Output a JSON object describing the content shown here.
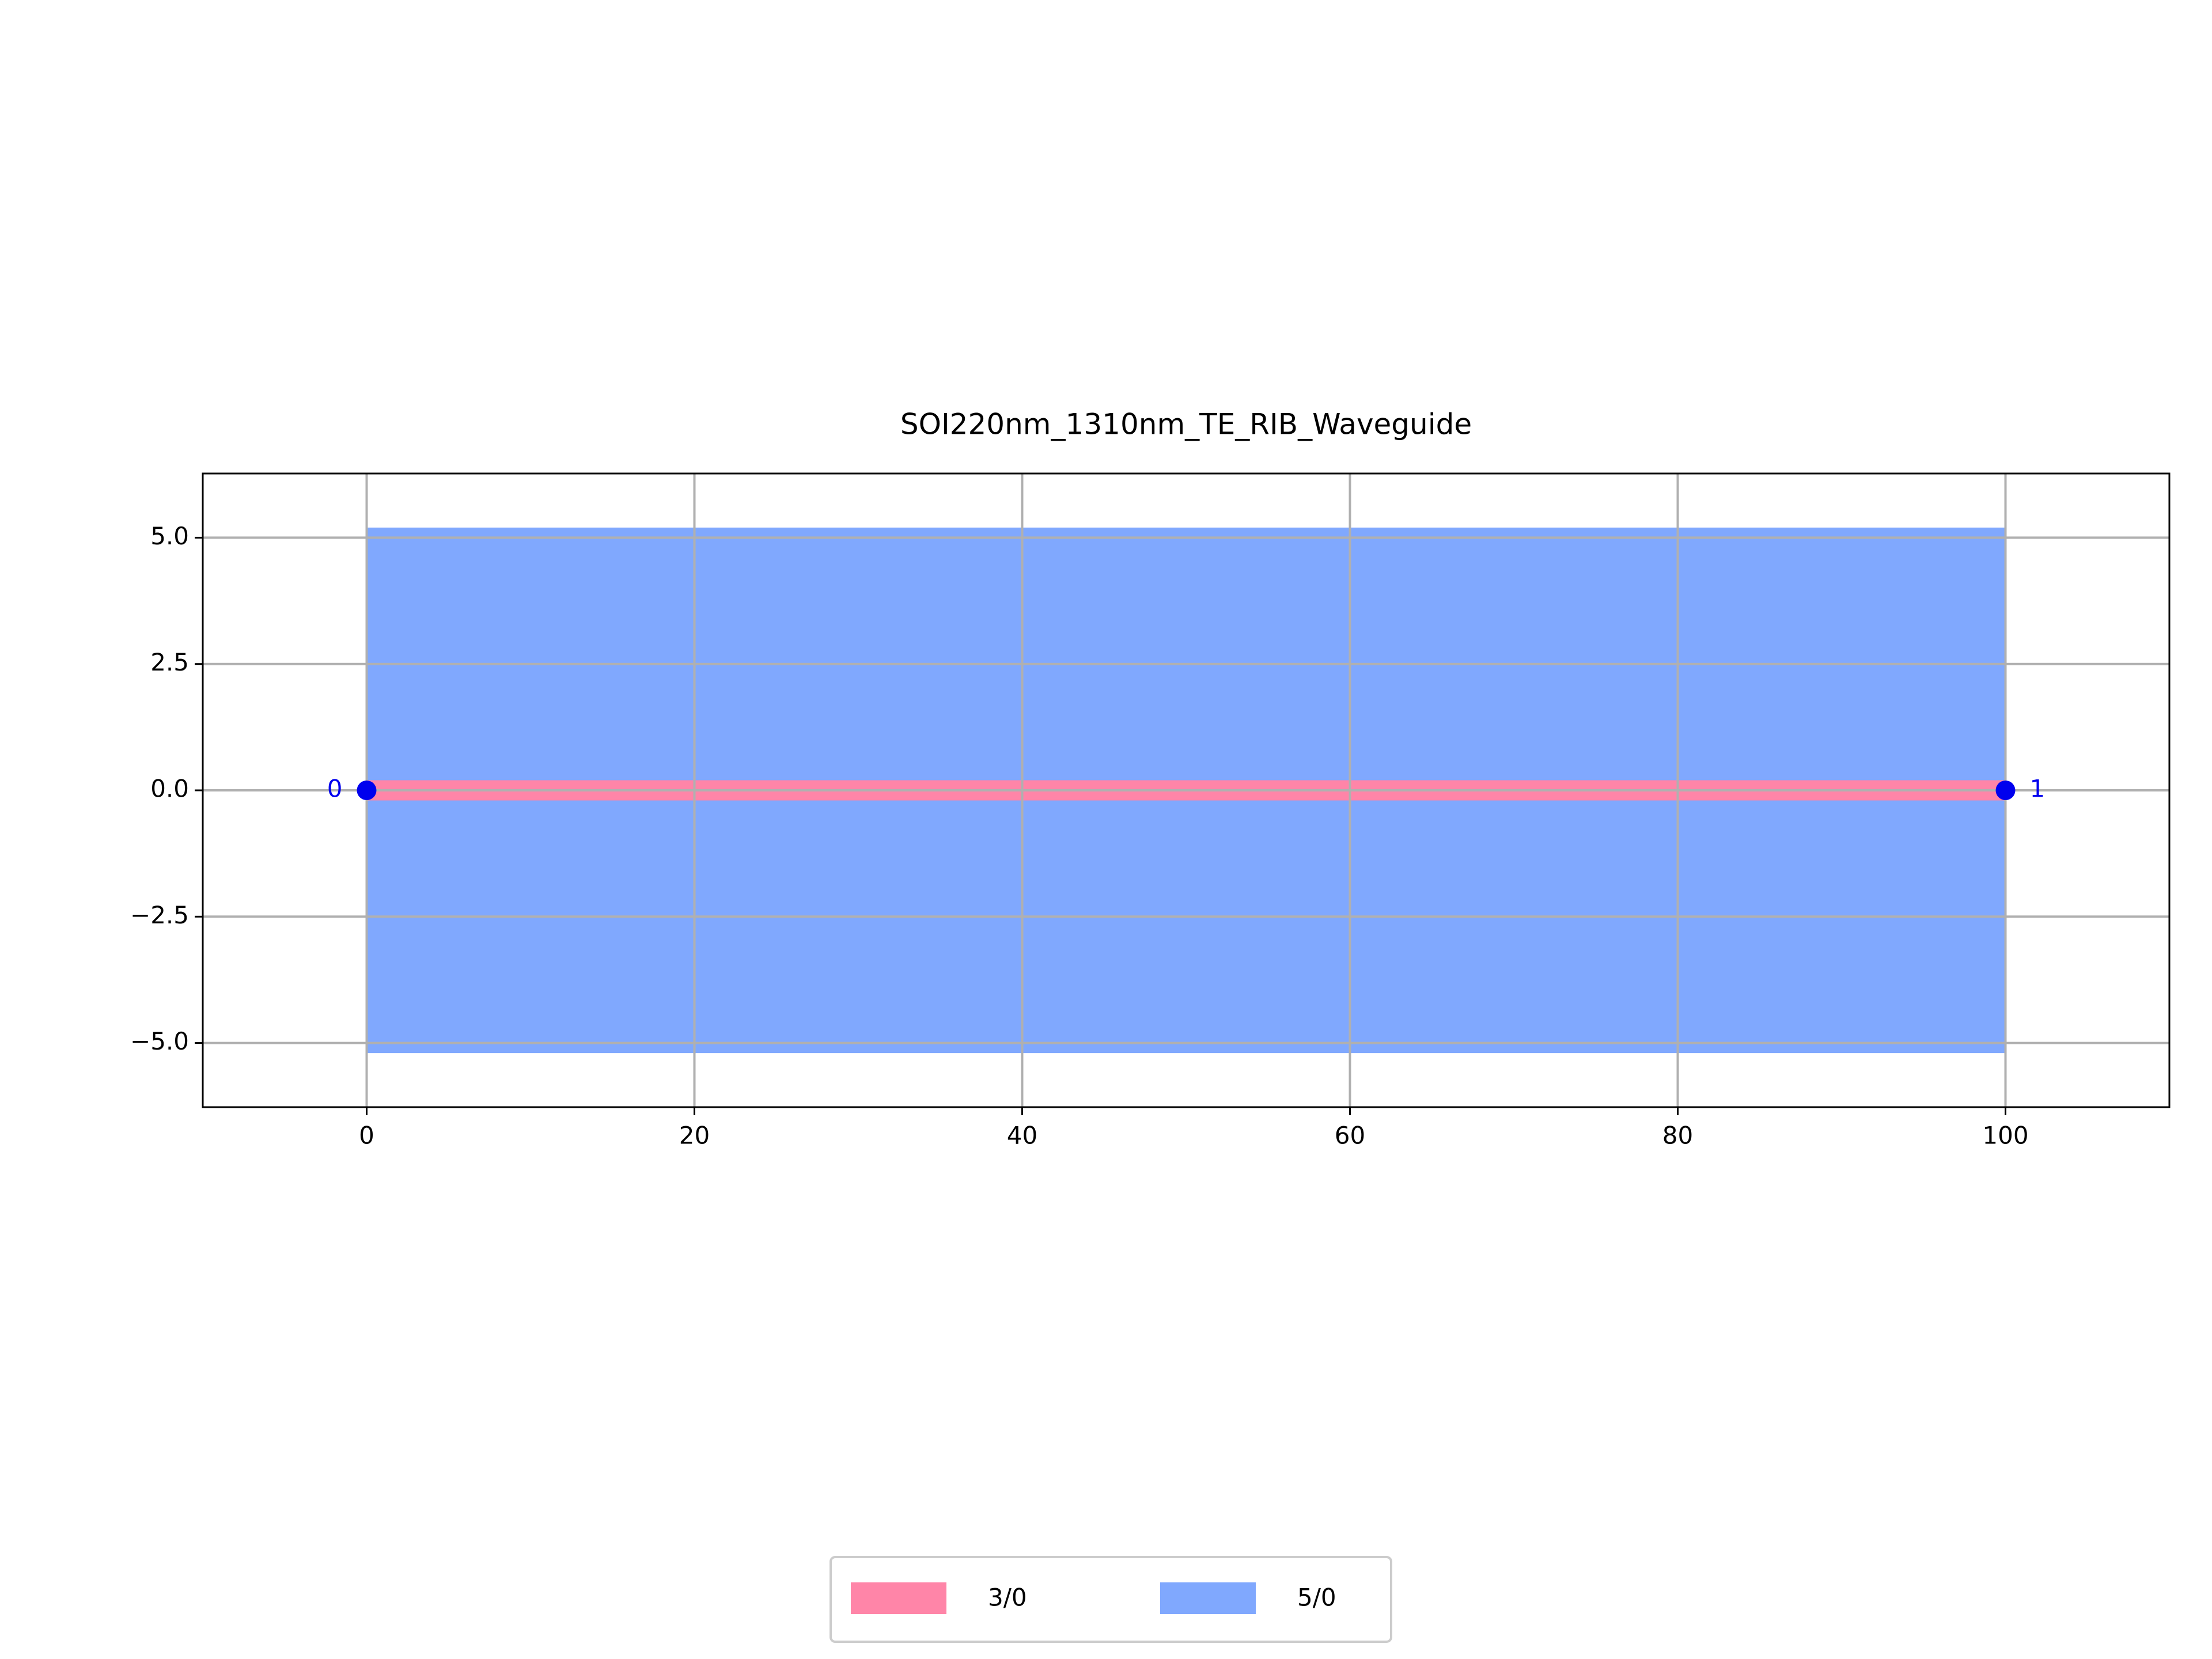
{
  "chart_data": {
    "type": "layout",
    "title": "SOI220nm_1310nm_TE_RIB_Waveguide",
    "series": [
      {
        "name": "3/0",
        "color": "#ff85a8",
        "x": [
          0,
          100
        ],
        "y": [
          -0.2,
          0.2
        ]
      },
      {
        "name": "5/0",
        "color": "#80a8fe",
        "x": [
          0,
          100
        ],
        "y": [
          -5.2,
          5.2
        ]
      }
    ],
    "ports": [
      {
        "label": "0",
        "x": 0,
        "y": 0
      },
      {
        "label": "1",
        "x": 100,
        "y": 0
      }
    ],
    "port_color": "#0000ee",
    "xlim": [
      -10,
      110
    ],
    "ylim": [
      -6.27,
      6.27
    ],
    "xticks": [
      0,
      20,
      40,
      60,
      80,
      100
    ],
    "yticks": [
      {
        "value": 5,
        "label": "5.0"
      },
      {
        "value": 2.5,
        "label": "2.5"
      },
      {
        "value": 0,
        "label": "0.0"
      },
      {
        "value": -2.5,
        "label": "−2.5"
      },
      {
        "value": -5,
        "label": "−5.0"
      }
    ],
    "grid": true,
    "legend": "bottom"
  }
}
